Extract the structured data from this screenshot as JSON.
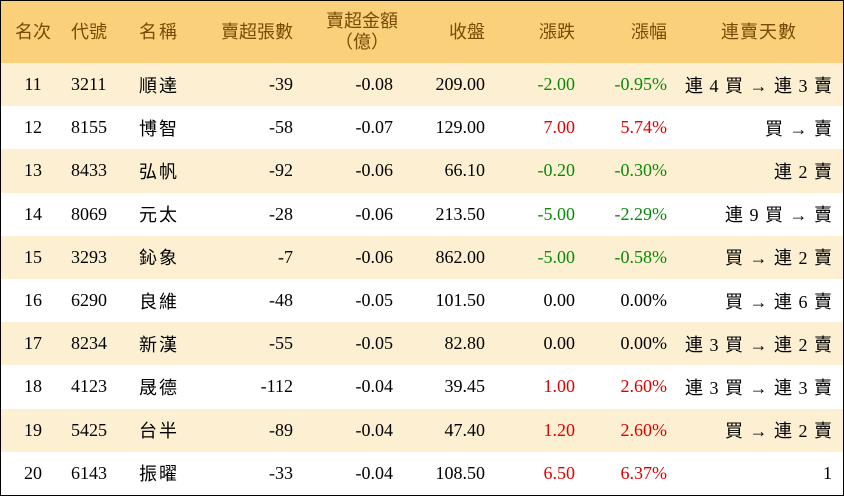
{
  "colors": {
    "header_bg": "#fad17a",
    "header_text": "#7a4a05",
    "row_alt_bg": "#fdf0d2",
    "up": "#e00000",
    "down": "#0a8a0a"
  },
  "columns": {
    "rank": "名次",
    "code": "代號",
    "name": "名稱",
    "net_sell_lots": "賣超張數",
    "net_sell_amount_line1": "賣超金額",
    "net_sell_amount_line2": "（億）",
    "close": "收盤",
    "change": "漲跌",
    "change_pct": "漲幅",
    "streak": "連賣天數"
  },
  "rows": [
    {
      "rank": "11",
      "code": "3211",
      "name": "順達",
      "lots": "-39",
      "amount": "-0.08",
      "close": "209.00",
      "change": "-2.00",
      "pct": "-0.95%",
      "streak": "連 4 買 → 連 3 賣",
      "dir": "down"
    },
    {
      "rank": "12",
      "code": "8155",
      "name": "博智",
      "lots": "-58",
      "amount": "-0.07",
      "close": "129.00",
      "change": "7.00",
      "pct": "5.74%",
      "streak": "買 → 賣",
      "dir": "up"
    },
    {
      "rank": "13",
      "code": "8433",
      "name": "弘帆",
      "lots": "-92",
      "amount": "-0.06",
      "close": "66.10",
      "change": "-0.20",
      "pct": "-0.30%",
      "streak": "連 2 賣",
      "dir": "down"
    },
    {
      "rank": "14",
      "code": "8069",
      "name": "元太",
      "lots": "-28",
      "amount": "-0.06",
      "close": "213.50",
      "change": "-5.00",
      "pct": "-2.29%",
      "streak": "連 9 買 → 賣",
      "dir": "down"
    },
    {
      "rank": "15",
      "code": "3293",
      "name": "鈊象",
      "lots": "-7",
      "amount": "-0.06",
      "close": "862.00",
      "change": "-5.00",
      "pct": "-0.58%",
      "streak": "買 → 連 2 賣",
      "dir": "down"
    },
    {
      "rank": "16",
      "code": "6290",
      "name": "良維",
      "lots": "-48",
      "amount": "-0.05",
      "close": "101.50",
      "change": "0.00",
      "pct": "0.00%",
      "streak": "買 → 連 6 賣",
      "dir": "flat"
    },
    {
      "rank": "17",
      "code": "8234",
      "name": "新漢",
      "lots": "-55",
      "amount": "-0.05",
      "close": "82.80",
      "change": "0.00",
      "pct": "0.00%",
      "streak": "連 3 買 → 連 2 賣",
      "dir": "flat"
    },
    {
      "rank": "18",
      "code": "4123",
      "name": "晟德",
      "lots": "-112",
      "amount": "-0.04",
      "close": "39.45",
      "change": "1.00",
      "pct": "2.60%",
      "streak": "連 3 買 → 連 3 賣",
      "dir": "up"
    },
    {
      "rank": "19",
      "code": "5425",
      "name": "台半",
      "lots": "-89",
      "amount": "-0.04",
      "close": "47.40",
      "change": "1.20",
      "pct": "2.60%",
      "streak": "買 → 連 2 賣",
      "dir": "up"
    },
    {
      "rank": "20",
      "code": "6143",
      "name": "振曜",
      "lots": "-33",
      "amount": "-0.04",
      "close": "108.50",
      "change": "6.50",
      "pct": "6.37%",
      "streak": "1",
      "dir": "up"
    }
  ]
}
